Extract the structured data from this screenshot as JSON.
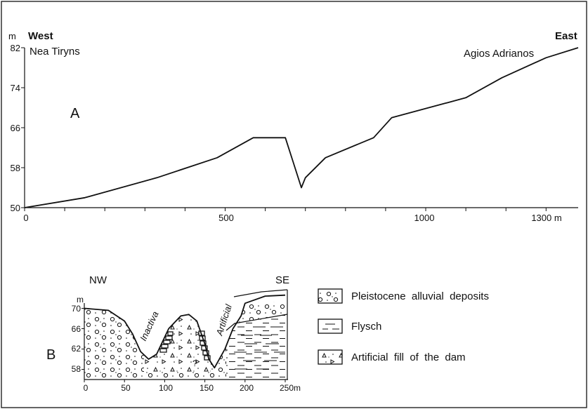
{
  "panel_a": {
    "letter": "A",
    "unit_m": "m",
    "west": "West",
    "east": "East",
    "place_west": "Nea Tiryns",
    "place_east": "Agios Adrianos",
    "y_ticks": [
      "82",
      "74",
      "66",
      "58",
      "50"
    ],
    "x_ticks": [
      "0",
      "500",
      "1000",
      "1300 m"
    ]
  },
  "panel_b": {
    "letter": "B",
    "nw": "NW",
    "se": "SE",
    "unit_m": "m",
    "y_ticks": [
      "70",
      "66",
      "62",
      "58"
    ],
    "x_ticks": [
      "0",
      "50",
      "100",
      "150",
      "200",
      "250m"
    ],
    "channel_inactive": "Inactiva",
    "channel_artificial": "Artificial",
    "question_mark": "?"
  },
  "legend": [
    {
      "label": "Pleistocene  alluvial  deposits"
    },
    {
      "label": "Flysch"
    },
    {
      "label": "Artificial  fill  of  the  dam"
    }
  ],
  "chart_data": [
    {
      "type": "line",
      "title": "",
      "xlabel": "m",
      "ylabel": "m",
      "xlim": [
        0,
        1380
      ],
      "ylim": [
        50,
        82
      ],
      "series": [
        {
          "x": [
            0,
            150,
            330,
            480,
            570,
            650,
            670,
            690,
            700,
            750,
            870,
            915,
            1100,
            1190,
            1300,
            1380
          ],
          "y": [
            50,
            52,
            56,
            60,
            64,
            64,
            59,
            54,
            56,
            60,
            64,
            68,
            72,
            76,
            80,
            82
          ]
        }
      ]
    },
    {
      "type": "line",
      "title": "",
      "xlabel": "m",
      "ylabel": "m",
      "xlim": [
        0,
        250
      ],
      "ylim": [
        56,
        72
      ],
      "series": [
        {
          "x": [
            0,
            30,
            50,
            60,
            70,
            80,
            90,
            105,
            120,
            130,
            140,
            150,
            155,
            162,
            175,
            185,
            195,
            200,
            225,
            250
          ],
          "y": [
            70,
            69.6,
            67.5,
            65,
            61.5,
            60,
            61,
            66,
            68.5,
            68.8,
            67.5,
            63,
            60,
            58.3,
            62,
            66,
            68.5,
            71,
            72.4,
            72.6
          ]
        }
      ]
    }
  ]
}
